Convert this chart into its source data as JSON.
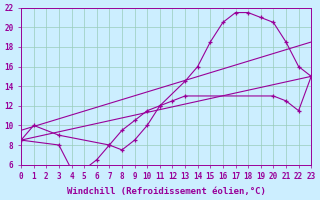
{
  "xlabel": "Windchill (Refroidissement éolien,°C)",
  "bg_color": "#cceeff",
  "line_color": "#990099",
  "xlim": [
    0,
    23
  ],
  "ylim": [
    6,
    22
  ],
  "xticks": [
    0,
    1,
    2,
    3,
    4,
    5,
    6,
    7,
    8,
    9,
    10,
    11,
    12,
    13,
    14,
    15,
    16,
    17,
    18,
    19,
    20,
    21,
    22,
    23
  ],
  "yticks": [
    6,
    8,
    10,
    12,
    14,
    16,
    18,
    20,
    22
  ],
  "curve1_x": [
    0,
    1,
    3,
    7,
    8,
    9,
    10,
    11,
    13,
    14,
    15,
    16,
    17,
    18,
    19,
    20,
    21,
    22,
    23
  ],
  "curve1_y": [
    8.5,
    10.0,
    9.0,
    8.0,
    7.5,
    8.5,
    10.0,
    12.0,
    14.5,
    16.0,
    18.5,
    20.5,
    21.5,
    21.5,
    21.0,
    20.5,
    18.5,
    16.0,
    15.0
  ],
  "curve2_x": [
    0,
    3,
    4,
    5,
    6,
    7,
    8,
    9,
    10,
    11,
    12,
    13,
    20,
    21,
    22,
    23
  ],
  "curve2_y": [
    8.5,
    8.0,
    5.5,
    5.5,
    6.5,
    8.0,
    9.5,
    10.5,
    11.5,
    12.0,
    12.5,
    13.0,
    13.0,
    12.5,
    11.5,
    15.0
  ],
  "line1_x": [
    0,
    23
  ],
  "line1_y": [
    9.5,
    18.5
  ],
  "line2_x": [
    0,
    23
  ],
  "line2_y": [
    8.5,
    15.0
  ],
  "grid_color": "#99ccbb",
  "tick_fontsize": 5.5,
  "xlabel_fontsize": 6.5
}
